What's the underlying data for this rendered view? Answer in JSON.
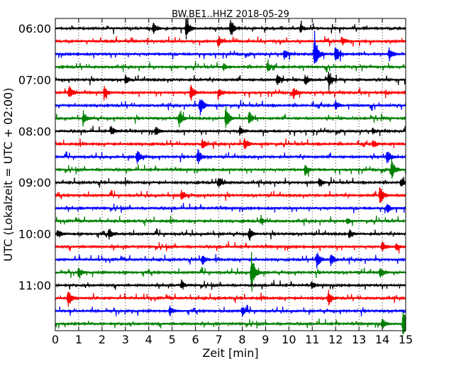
{
  "chart_data": {
    "type": "line",
    "title": "BW.BE1..HHZ 2018-05-29",
    "xlabel": "Zeit  [min]",
    "ylabel": "UTC (Lokalzeit = UTC + 02:00)",
    "xlim": [
      0,
      15
    ],
    "x_ticks": [
      "0",
      "1",
      "2",
      "3",
      "4",
      "5",
      "6",
      "7",
      "8",
      "9",
      "10",
      "11",
      "12",
      "13",
      "14",
      "15"
    ],
    "y_ticks": [
      "06:00",
      "07:00",
      "08:00",
      "09:00",
      "10:00",
      "11:00"
    ],
    "grid": "vertical dotted",
    "row_interval_min": 15,
    "colors": [
      "#000000",
      "#ff0000",
      "#0000ff",
      "#008000"
    ],
    "traces": [
      {
        "start": "06:00",
        "color": "#000000",
        "events": [
          [
            4.2,
            0.35
          ],
          [
            5.6,
            0.7
          ],
          [
            7.5,
            0.65
          ],
          [
            10.5,
            0.25
          ]
        ]
      },
      {
        "start": "06:15",
        "color": "#ff0000",
        "events": [
          [
            7,
            0.3
          ],
          [
            12.3,
            0.3
          ]
        ]
      },
      {
        "start": "06:30",
        "color": "#0000ff",
        "events": [
          [
            9.8,
            0.4
          ],
          [
            11.1,
            1.3
          ],
          [
            12,
            0.65
          ],
          [
            14.3,
            0.5
          ]
        ]
      },
      {
        "start": "06:45",
        "color": "#008000",
        "events": [
          [
            7.2,
            0.25
          ],
          [
            9.1,
            0.3
          ]
        ]
      },
      {
        "start": "07:00",
        "color": "#000000",
        "events": [
          [
            3,
            0.3
          ],
          [
            9.5,
            0.4
          ],
          [
            10.7,
            0.35
          ],
          [
            11.7,
            0.45
          ]
        ]
      },
      {
        "start": "07:15",
        "color": "#ff0000",
        "events": [
          [
            0.6,
            0.45
          ],
          [
            2.1,
            0.4
          ],
          [
            5.8,
            0.55
          ],
          [
            7,
            0.35
          ],
          [
            10.2,
            0.4
          ]
        ]
      },
      {
        "start": "07:30",
        "color": "#0000ff",
        "events": [
          [
            6.2,
            0.65
          ],
          [
            12,
            0.3
          ]
        ]
      },
      {
        "start": "07:45",
        "color": "#008000",
        "events": [
          [
            1.2,
            0.45
          ],
          [
            5.3,
            0.55
          ],
          [
            7.3,
            0.85
          ],
          [
            8.3,
            0.45
          ]
        ]
      },
      {
        "start": "08:00",
        "color": "#000000",
        "events": [
          [
            2.4,
            0.3
          ],
          [
            4.3,
            0.35
          ],
          [
            7.9,
            0.3
          ],
          [
            13.6,
            0.2
          ]
        ]
      },
      {
        "start": "08:15",
        "color": "#ff0000",
        "events": [
          [
            6.3,
            0.35
          ],
          [
            8.1,
            0.4
          ],
          [
            13.6,
            0.3
          ]
        ]
      },
      {
        "start": "08:30",
        "color": "#0000ff",
        "events": [
          [
            3.5,
            0.45
          ],
          [
            6.1,
            0.5
          ],
          [
            14.2,
            0.5
          ]
        ]
      },
      {
        "start": "08:45",
        "color": "#008000",
        "events": [
          [
            10.7,
            0.45
          ],
          [
            14.4,
            0.65
          ]
        ]
      },
      {
        "start": "09:00",
        "color": "#000000",
        "events": [
          [
            7,
            0.35
          ],
          [
            11.3,
            0.3
          ],
          [
            14.8,
            0.3
          ]
        ]
      },
      {
        "start": "09:15",
        "color": "#ff0000",
        "events": [
          [
            5.4,
            0.3
          ],
          [
            13.9,
            0.65
          ]
        ]
      },
      {
        "start": "09:30",
        "color": "#0000ff",
        "events": [
          [
            14.2,
            0.35
          ]
        ]
      },
      {
        "start": "09:45",
        "color": "#008000",
        "events": [
          [
            8.8,
            0.2
          ],
          [
            12.5,
            0.2
          ]
        ]
      },
      {
        "start": "10:00",
        "color": "#000000",
        "events": [
          [
            0.1,
            0.3
          ],
          [
            2.3,
            0.4
          ],
          [
            8.3,
            0.4
          ],
          [
            12.6,
            0.3
          ]
        ]
      },
      {
        "start": "10:15",
        "color": "#ff0000",
        "events": [
          [
            14,
            0.3
          ],
          [
            14.6,
            0.3
          ]
        ]
      },
      {
        "start": "10:30",
        "color": "#0000ff",
        "events": [
          [
            6.3,
            0.35
          ],
          [
            11.2,
            0.55
          ],
          [
            11.8,
            0.4
          ]
        ]
      },
      {
        "start": "10:45",
        "color": "#008000",
        "events": [
          [
            1,
            0.35
          ],
          [
            8.4,
            1.3
          ],
          [
            13.9,
            0.45
          ]
        ]
      },
      {
        "start": "11:00",
        "color": "#000000",
        "events": [
          [
            5.4,
            0.3
          ],
          [
            11,
            0.3
          ]
        ]
      },
      {
        "start": "11:15",
        "color": "#ff0000",
        "events": [
          [
            0.55,
            0.6
          ],
          [
            11.7,
            0.55
          ]
        ]
      },
      {
        "start": "11:30",
        "color": "#0000ff",
        "events": [
          [
            4.9,
            0.35
          ],
          [
            8,
            0.3
          ]
        ]
      },
      {
        "start": "11:45",
        "color": "#008000",
        "events": [
          [
            14,
            0.4
          ],
          [
            14.9,
            1.4
          ]
        ]
      }
    ]
  }
}
